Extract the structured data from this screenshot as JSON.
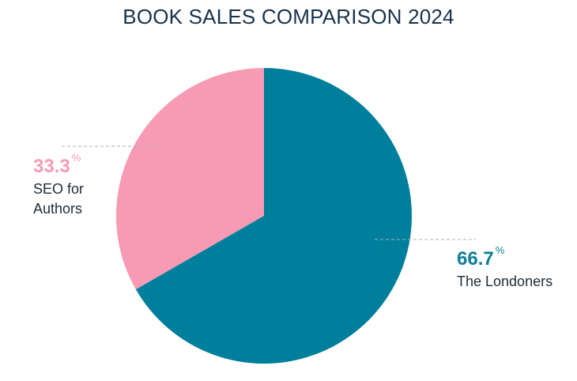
{
  "chart_data": {
    "type": "pie",
    "title": "BOOK SALES COMPARISON 2024",
    "slices": [
      {
        "label": "SEO for Authors",
        "value": 33.3,
        "unit": "%",
        "color": "#f79bb5"
      },
      {
        "label": "The Londoners",
        "value": 66.7,
        "unit": "%",
        "color": "#007f9d"
      }
    ]
  },
  "labels": {
    "seo": {
      "value": "33.3",
      "unit": "%",
      "name_line1": "SEO for",
      "name_line2": "Authors",
      "color": "#f79bb5"
    },
    "londoners": {
      "value": "66.7",
      "unit": "%",
      "name": "The Londoners",
      "color": "#0b7f9a"
    }
  },
  "leader_color": "#aab2b8"
}
